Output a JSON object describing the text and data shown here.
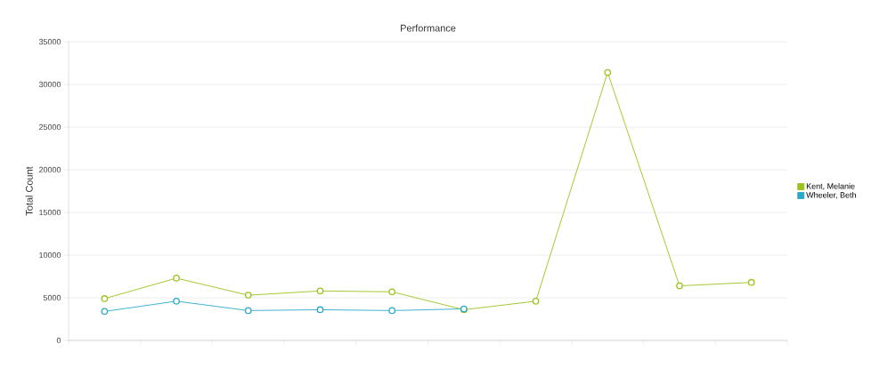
{
  "chart_data": {
    "type": "line",
    "title": "Performance",
    "ylabel": "Total Count",
    "categories": [
      null,
      null,
      null,
      null,
      null,
      null,
      null,
      null,
      null,
      null
    ],
    "series": [
      {
        "name": "Kent, Melanie",
        "color": "#9ac31c",
        "values": [
          4900,
          7300,
          5300,
          5800,
          5700,
          3600,
          4600,
          31400,
          6400,
          6800
        ]
      },
      {
        "name": "Wheeler, Beth",
        "color": "#2aa9c9",
        "values": [
          3400,
          4600,
          3500,
          3600,
          3500,
          3700,
          null,
          null,
          null,
          null
        ]
      }
    ],
    "ylim": [
      0,
      35000
    ],
    "yticks": [
      0,
      5000,
      10000,
      15000,
      20000,
      25000,
      30000,
      35000
    ],
    "grid": "y",
    "legend": "right",
    "marker": "circle",
    "line_style": "solid",
    "tick_labels": "y"
  }
}
